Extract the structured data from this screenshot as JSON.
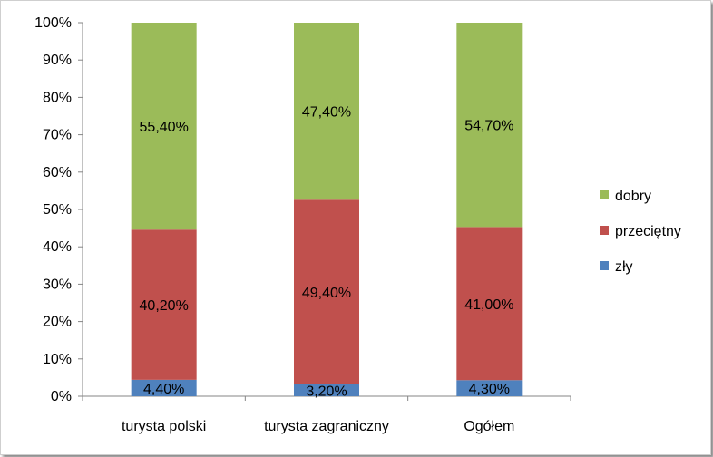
{
  "chart_data": {
    "type": "bar",
    "stacked": true,
    "percent_stacked": true,
    "categories": [
      "turysta polski",
      "turysta zagraniczny",
      "Ogółem"
    ],
    "series": [
      {
        "name": "zły",
        "values": [
          4.4,
          3.2,
          4.3
        ],
        "labels": [
          "4,40%",
          "3,20%",
          "4,30%"
        ],
        "color": "#4f81bd"
      },
      {
        "name": "przeciętny",
        "values": [
          40.2,
          49.4,
          41.0
        ],
        "labels": [
          "40,20%",
          "49,40%",
          "41,00%"
        ],
        "color": "#c0504d"
      },
      {
        "name": "dobry",
        "values": [
          55.4,
          47.4,
          54.7
        ],
        "labels": [
          "55,40%",
          "47,40%",
          "54,70%"
        ],
        "color": "#9bbb59"
      }
    ],
    "ylim": [
      0,
      100
    ],
    "y_ticks": [
      "0%",
      "10%",
      "20%",
      "30%",
      "40%",
      "50%",
      "60%",
      "70%",
      "80%",
      "90%",
      "100%"
    ],
    "grid": false,
    "legend_position": "right",
    "legend_order": [
      "dobry",
      "przeciętny",
      "zły"
    ]
  }
}
